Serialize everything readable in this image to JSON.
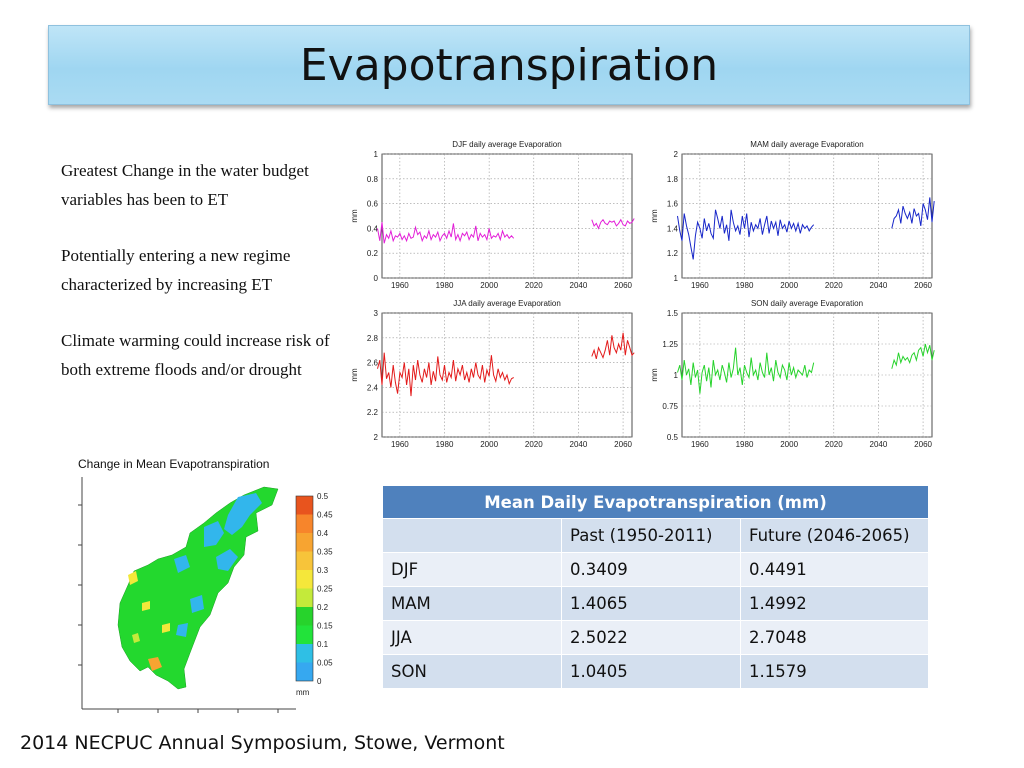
{
  "slide": {
    "title": "Evapotranspiration",
    "bullets": [
      "Greatest Change in the water budget variables has been to ET",
      "Potentially entering a new regime characterized by increasing ET",
      "Climate warming could  increase risk of both extreme floods and/or drought"
    ],
    "footer": "2014 NECPUC Annual Symposium, Stowe, Vermont"
  },
  "map": {
    "title": "Change in Mean Evapotranspiration",
    "colorbar_ticks": [
      "0.5",
      "0.45",
      "0.4",
      "0.35",
      "0.3",
      "0.25",
      "0.2",
      "0.15",
      "0.1",
      "0.05",
      "0"
    ],
    "colorbar_unit": "mm",
    "colorbar_colors": [
      "#e8541e",
      "#f7852b",
      "#f7a431",
      "#f7c43a",
      "#f5e73a",
      "#c4ea3a",
      "#27d32c",
      "#22e33a",
      "#2fbfe5",
      "#36a8f0"
    ]
  },
  "table": {
    "title": "Mean Daily Evapotranspiration (mm)",
    "columns": [
      "",
      "Past (1950-2011)",
      "Future (2046-2065)"
    ],
    "rows": [
      [
        "DJF",
        "0.3409",
        "0.4491"
      ],
      [
        "MAM",
        "1.4065",
        "1.4992"
      ],
      [
        "JJA",
        "2.5022",
        "2.7048"
      ],
      [
        "SON",
        "1.0405",
        "1.1579"
      ]
    ]
  },
  "chart_data": [
    {
      "type": "line",
      "title": "DJF daily average Evaporation",
      "ylabel": "mm",
      "xlim": [
        1952,
        2064
      ],
      "ylim": [
        0,
        1
      ],
      "xticks": [
        "1960",
        "1980",
        "2000",
        "2020",
        "2040",
        "2060"
      ],
      "yticks": [
        "0",
        "0.2",
        "0.4",
        "0.6",
        "0.8",
        "1"
      ],
      "grid": true,
      "color": "#e31ed8",
      "series": [
        {
          "x_start": 1950,
          "values": [
            0.4,
            0.3,
            0.45,
            0.28,
            0.35,
            0.32,
            0.38,
            0.3,
            0.34,
            0.33,
            0.36,
            0.31,
            0.34,
            0.3,
            0.36,
            0.32,
            0.33,
            0.41,
            0.35,
            0.37,
            0.3,
            0.34,
            0.32,
            0.38,
            0.31,
            0.35,
            0.33,
            0.37,
            0.3,
            0.34,
            0.36,
            0.32,
            0.38,
            0.33,
            0.44,
            0.31,
            0.35,
            0.3,
            0.36,
            0.34,
            0.37,
            0.31,
            0.35,
            0.33,
            0.42,
            0.3,
            0.36,
            0.33,
            0.35,
            0.31,
            0.4,
            0.32,
            0.34,
            0.33,
            0.36,
            0.31,
            0.38,
            0.33,
            0.35,
            0.32,
            0.34,
            0.32
          ]
        },
        {
          "x_start": 2046,
          "values": [
            0.47,
            0.42,
            0.44,
            0.4,
            0.45,
            0.47,
            0.44,
            0.43,
            0.46,
            0.45,
            0.46,
            0.42,
            0.44,
            0.47,
            0.43,
            0.42,
            0.46,
            0.44,
            0.45,
            0.48
          ]
        }
      ]
    },
    {
      "type": "line",
      "title": "MAM daily average Evaporation",
      "ylabel": "mm",
      "xlim": [
        1952,
        2064
      ],
      "ylim": [
        1,
        2
      ],
      "xticks": [
        "1960",
        "1980",
        "2000",
        "2020",
        "2040",
        "2060"
      ],
      "yticks": [
        "1",
        "1.2",
        "1.4",
        "1.6",
        "1.8",
        "2"
      ],
      "grid": true,
      "color": "#1726c9",
      "series": [
        {
          "x_start": 1950,
          "values": [
            1.5,
            1.38,
            1.3,
            1.52,
            1.42,
            1.35,
            1.25,
            1.15,
            1.34,
            1.45,
            1.4,
            1.32,
            1.48,
            1.38,
            1.44,
            1.36,
            1.32,
            1.55,
            1.48,
            1.4,
            1.5,
            1.36,
            1.43,
            1.3,
            1.55,
            1.45,
            1.38,
            1.42,
            1.35,
            1.5,
            1.4,
            1.52,
            1.33,
            1.45,
            1.38,
            1.43,
            1.4,
            1.48,
            1.35,
            1.43,
            1.5,
            1.36,
            1.46,
            1.4,
            1.45,
            1.34,
            1.47,
            1.4,
            1.43,
            1.37,
            1.46,
            1.4,
            1.44,
            1.38,
            1.44,
            1.36,
            1.43,
            1.4,
            1.42,
            1.38,
            1.41,
            1.43
          ]
        },
        {
          "x_start": 2046,
          "values": [
            1.4,
            1.48,
            1.5,
            1.55,
            1.44,
            1.58,
            1.52,
            1.48,
            1.53,
            1.44,
            1.56,
            1.5,
            1.52,
            1.42,
            1.6,
            1.55,
            1.47,
            1.65,
            1.45,
            1.62
          ]
        }
      ]
    },
    {
      "type": "line",
      "title": "JJA daily average Evaporation",
      "ylabel": "mm",
      "xlim": [
        1952,
        2064
      ],
      "ylim": [
        2,
        3
      ],
      "xticks": [
        "1960",
        "1980",
        "2000",
        "2020",
        "2040",
        "2060"
      ],
      "yticks": [
        "2",
        "2.2",
        "2.4",
        "2.6",
        "2.8",
        "3"
      ],
      "grid": true,
      "color": "#e31b1b",
      "series": [
        {
          "x_start": 1950,
          "values": [
            2.55,
            2.62,
            2.42,
            2.68,
            2.47,
            2.52,
            2.4,
            2.58,
            2.44,
            2.35,
            2.52,
            2.48,
            2.6,
            2.42,
            2.55,
            2.33,
            2.58,
            2.46,
            2.62,
            2.5,
            2.44,
            2.55,
            2.48,
            2.6,
            2.42,
            2.53,
            2.45,
            2.65,
            2.5,
            2.46,
            2.58,
            2.44,
            2.52,
            2.48,
            2.62,
            2.45,
            2.55,
            2.5,
            2.58,
            2.46,
            2.52,
            2.44,
            2.55,
            2.48,
            2.6,
            2.5,
            2.47,
            2.58,
            2.44,
            2.54,
            2.49,
            2.66,
            2.5,
            2.45,
            2.55,
            2.48,
            2.52,
            2.46,
            2.5,
            2.43,
            2.47,
            2.48
          ]
        },
        {
          "x_start": 2046,
          "values": [
            2.65,
            2.7,
            2.63,
            2.72,
            2.68,
            2.64,
            2.7,
            2.78,
            2.66,
            2.82,
            2.72,
            2.68,
            2.75,
            2.7,
            2.84,
            2.66,
            2.78,
            2.72,
            2.66,
            2.68
          ]
        }
      ]
    },
    {
      "type": "line",
      "title": "SON daily average Evaporation",
      "ylabel": "mm",
      "xlim": [
        1952,
        2064
      ],
      "ylim": [
        0.5,
        1.5
      ],
      "xticks": [
        "1960",
        "1980",
        "2000",
        "2020",
        "2040",
        "2060"
      ],
      "yticks": [
        "0.5",
        "0.75",
        "1",
        "1.25",
        "1.5"
      ],
      "grid": true,
      "color": "#27d32c",
      "series": [
        {
          "x_start": 1950,
          "values": [
            1.02,
            1.08,
            0.96,
            1.12,
            1.0,
            1.05,
            0.92,
            1.1,
            0.98,
            1.04,
            0.85,
            1.02,
            1.08,
            0.95,
            1.06,
            0.9,
            1.12,
            1.0,
            1.04,
            0.96,
            1.08,
            1.02,
            0.94,
            1.1,
            0.98,
            1.05,
            1.22,
            1.0,
            1.06,
            0.92,
            1.08,
            1.02,
            0.98,
            1.14,
            1.0,
            1.04,
            0.96,
            1.1,
            1.02,
            0.98,
            1.18,
            1.0,
            1.06,
            0.95,
            1.12,
            1.02,
            0.98,
            1.08,
            1.04,
            0.96,
            1.1,
            1.0,
            1.06,
            0.98,
            1.04,
            1.02,
            1.0,
            1.08,
            0.98,
            1.04,
            1.02,
            1.1
          ]
        },
        {
          "x_start": 2046,
          "values": [
            1.05,
            1.12,
            1.08,
            1.18,
            1.1,
            1.15,
            1.12,
            1.14,
            1.1,
            1.16,
            1.18,
            1.12,
            1.2,
            1.22,
            1.15,
            1.25,
            1.18,
            1.24,
            1.12,
            1.2
          ]
        }
      ]
    }
  ]
}
